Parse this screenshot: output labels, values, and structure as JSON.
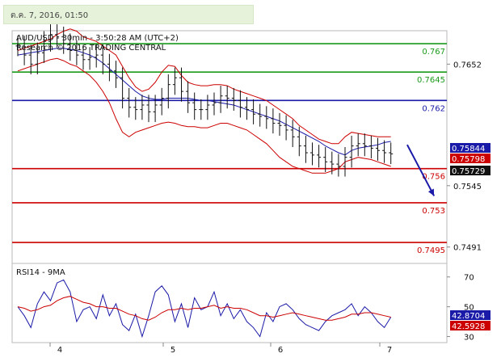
{
  "header": {
    "date_text": "ต.ค. 7, 2016, 01:50"
  },
  "chart_data": [
    {
      "type": "line",
      "title": "AUD/USD - 30min - 3:50:28 AM (UTC+2)",
      "subtitle": "Research © 2016 TRADING CENTRAL",
      "xlabel": "",
      "ylabel": "",
      "ylim": [
        0.7478,
        0.768
      ],
      "x_ticks": [
        "4",
        "5",
        "6",
        "7"
      ],
      "y_ticks": [
        {
          "value": 0.7652,
          "label": "0.7652"
        },
        {
          "value": 0.7545,
          "label": "0.7545"
        },
        {
          "value": 0.7491,
          "label": "0.7491"
        }
      ],
      "levels": [
        {
          "value": 0.767,
          "label": "0.767",
          "color": "#1a9a1a"
        },
        {
          "value": 0.7645,
          "label": "0.7645",
          "color": "#1a9a1a"
        },
        {
          "value": 0.762,
          "label": "0.762",
          "color": "#1a1aa8"
        },
        {
          "value": 0.756,
          "label": "0.756",
          "color": "#cc0000"
        },
        {
          "value": 0.753,
          "label": "0.753",
          "color": "#cc0000"
        },
        {
          "value": 0.7495,
          "label": "0.7495",
          "color": "#cc0000"
        }
      ],
      "price_tags": [
        {
          "value": 0.75844,
          "label": "0.75844",
          "color": "#1a1aa8"
        },
        {
          "value": 0.75798,
          "label": "0.75798",
          "color": "#cc0000"
        },
        {
          "value": 0.75729,
          "label": "0.75729",
          "color": "#111111"
        }
      ],
      "close": [
        0.7668,
        0.766,
        0.7652,
        0.7662,
        0.7672,
        0.7678,
        0.7676,
        0.767,
        0.7664,
        0.766,
        0.7656,
        0.7658,
        0.766,
        0.7652,
        0.7646,
        0.764,
        0.7622,
        0.7614,
        0.7612,
        0.7616,
        0.761,
        0.7616,
        0.7622,
        0.7634,
        0.764,
        0.7628,
        0.7618,
        0.7612,
        0.7612,
        0.7616,
        0.7618,
        0.7624,
        0.7622,
        0.762,
        0.7614,
        0.7612,
        0.7608,
        0.7606,
        0.7604,
        0.76,
        0.7598,
        0.7594,
        0.7588,
        0.758,
        0.7574,
        0.7572,
        0.757,
        0.7566,
        0.7564,
        0.7562,
        0.757,
        0.758,
        0.7582,
        0.758,
        0.7578,
        0.7576,
        0.7574,
        0.7573
      ],
      "series": [
        {
          "name": "MA",
          "values": [
            0.766,
            0.7661,
            0.7662,
            0.7663,
            0.7664,
            0.7665,
            0.7666,
            0.7666,
            0.7665,
            0.7664,
            0.7662,
            0.766,
            0.7657,
            0.7653,
            0.7648,
            0.7643,
            0.7638,
            0.7633,
            0.7628,
            0.7624,
            0.7622,
            0.7621,
            0.7621,
            0.7622,
            0.7622,
            0.7622,
            0.7622,
            0.7621,
            0.762,
            0.762,
            0.7619,
            0.7618,
            0.7617,
            0.7616,
            0.7614,
            0.7612,
            0.761,
            0.7608,
            0.7606,
            0.7604,
            0.7602,
            0.7599,
            0.7596,
            0.7593,
            0.759,
            0.7587,
            0.7584,
            0.758,
            0.7577,
            0.7574,
            0.7572,
            0.7576,
            0.7578,
            0.7579,
            0.758,
            0.7581,
            0.7583,
            0.7584
          ]
        },
        {
          "name": "Upper band",
          "values": [
            0.7664,
            0.7666,
            0.7668,
            0.767,
            0.7672,
            0.7674,
            0.7678,
            0.7681,
            0.7683,
            0.7681,
            0.7676,
            0.7674,
            0.7672,
            0.7668,
            0.7664,
            0.766,
            0.765,
            0.764,
            0.7632,
            0.7628,
            0.763,
            0.7636,
            0.7645,
            0.7651,
            0.765,
            0.7642,
            0.7636,
            0.7634,
            0.7633,
            0.7633,
            0.7634,
            0.7634,
            0.7633,
            0.763,
            0.7628,
            0.7626,
            0.7624,
            0.7622,
            0.762,
            0.7616,
            0.7612,
            0.7608,
            0.7604,
            0.7598,
            0.7594,
            0.759,
            0.7586,
            0.7584,
            0.7582,
            0.7582,
            0.7588,
            0.7592,
            0.7591,
            0.759,
            0.7589,
            0.7588,
            0.7588,
            0.7588
          ]
        },
        {
          "name": "Lower band",
          "values": [
            0.7646,
            0.7648,
            0.765,
            0.7652,
            0.7654,
            0.7656,
            0.7657,
            0.7655,
            0.7652,
            0.765,
            0.7646,
            0.7642,
            0.7636,
            0.7628,
            0.7618,
            0.7604,
            0.7592,
            0.7588,
            0.7592,
            0.7594,
            0.7596,
            0.7598,
            0.76,
            0.7601,
            0.76,
            0.7598,
            0.7597,
            0.7597,
            0.7596,
            0.7596,
            0.7598,
            0.76,
            0.76,
            0.7598,
            0.7596,
            0.7594,
            0.759,
            0.7586,
            0.7582,
            0.7576,
            0.757,
            0.7566,
            0.7562,
            0.756,
            0.7558,
            0.7556,
            0.7556,
            0.7556,
            0.7558,
            0.756,
            0.7566,
            0.7568,
            0.757,
            0.7569,
            0.7568,
            0.7566,
            0.7564,
            0.7562
          ]
        }
      ],
      "forecast": [
        {
          "x": 59.5,
          "y": 0.7581
        },
        {
          "x": 63.6,
          "y": 0.7536
        }
      ],
      "grid": false,
      "legend": "none"
    },
    {
      "type": "line",
      "title": "RSI14 - 9MA",
      "ylim": [
        27,
        78
      ],
      "y_ticks": [
        {
          "value": 70,
          "label": "70"
        },
        {
          "value": 50,
          "label": "50"
        },
        {
          "value": 30,
          "label": "30"
        }
      ],
      "value_tags": [
        {
          "value": 42.8704,
          "label": "42.8704",
          "color": "#1a1aa8"
        },
        {
          "value": 42.5928,
          "label": "42.5928",
          "color": "#cc0000"
        }
      ],
      "series": [
        {
          "name": "RSI14",
          "values": [
            50,
            44,
            36,
            52,
            60,
            54,
            66,
            68,
            60,
            40,
            48,
            50,
            42,
            58,
            44,
            52,
            38,
            34,
            45,
            30,
            44,
            60,
            64,
            58,
            40,
            52,
            36,
            56,
            48,
            50,
            60,
            44,
            52,
            42,
            48,
            40,
            36,
            30,
            46,
            40,
            50,
            52,
            48,
            42,
            38,
            36,
            34,
            40,
            44,
            46,
            48,
            52,
            44,
            50,
            46,
            40,
            36,
            43
          ]
        },
        {
          "name": "9MA",
          "values": [
            50,
            49,
            47,
            48,
            50,
            51,
            54,
            56,
            57,
            55,
            53,
            52,
            50,
            50,
            49,
            49,
            47,
            45,
            44,
            42,
            41,
            43,
            46,
            48,
            48,
            49,
            48,
            49,
            49,
            50,
            51,
            49,
            50,
            49,
            49,
            48,
            46,
            44,
            44,
            43,
            44,
            45,
            46,
            45,
            44,
            43,
            42,
            41,
            41,
            42,
            43,
            45,
            45,
            46,
            46,
            45,
            44,
            43
          ]
        }
      ]
    }
  ]
}
